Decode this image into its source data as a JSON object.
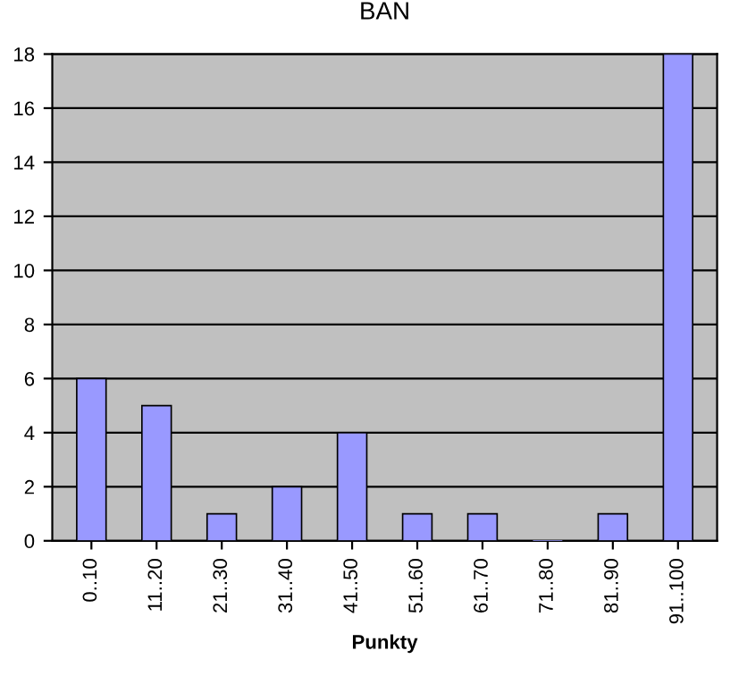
{
  "chart_data": {
    "type": "bar",
    "title": "BAN",
    "xlabel": "Punkty",
    "categories": [
      "0..10",
      "11..20",
      "21..30",
      "31..40",
      "41..50",
      "51..60",
      "61..70",
      "71..80",
      "81..90",
      "91..100"
    ],
    "values": [
      6,
      5,
      1,
      2,
      4,
      1,
      1,
      0,
      1,
      18
    ],
    "color": "#9999ff",
    "ylim": [
      0,
      18
    ],
    "yticks": [
      0,
      2,
      4,
      6,
      8,
      10,
      12,
      14,
      16,
      18
    ],
    "grid": "y",
    "legend": false
  }
}
